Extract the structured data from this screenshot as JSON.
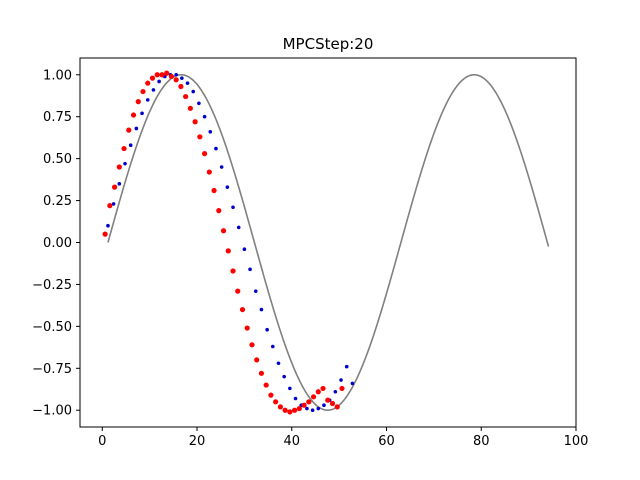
{
  "chart_data": {
    "type": "scatter",
    "title": "MPCStep:20",
    "xlabel": "",
    "ylabel": "",
    "xlim": [
      -4.7,
      100
    ],
    "ylim": [
      -1.1,
      1.1
    ],
    "xticks": [
      0,
      20,
      40,
      60,
      80,
      100
    ],
    "yticks": [
      -1.0,
      -0.75,
      -0.5,
      -0.25,
      0.0,
      0.25,
      0.5,
      0.75,
      1.0
    ],
    "xtick_labels": [
      "0",
      "20",
      "40",
      "60",
      "80",
      "100"
    ],
    "ytick_labels": [
      "−1.00",
      "−0.75",
      "−0.50",
      "−0.25",
      "0.00",
      "0.25",
      "0.50",
      "0.75",
      "1.00"
    ],
    "grid": false,
    "reference_curve": {
      "function": "sin",
      "amplitude": 1.0,
      "x_start": 1.2,
      "x_end": 94.2,
      "x_at_peak": 78.5,
      "color": "#808080"
    },
    "series": [
      {
        "color": "#0000cc",
        "marker": "dot",
        "x": [
          1.2,
          2.4,
          3.6,
          4.8,
          6.0,
          7.2,
          8.4,
          9.6,
          10.8,
          12.0,
          13.2,
          14.4,
          15.6,
          16.8,
          18.0,
          19.2,
          20.4,
          21.6,
          22.8,
          24.0,
          25.2,
          26.4,
          27.6,
          28.8,
          30.0,
          31.2,
          32.4,
          33.6,
          34.8,
          36.0,
          37.2,
          38.4,
          39.6,
          40.8,
          42.0,
          43.2,
          44.4,
          45.6,
          46.8,
          48.0,
          49.2,
          50.4,
          51.6,
          52.8
        ],
        "y": [
          0.1,
          0.23,
          0.35,
          0.47,
          0.58,
          0.68,
          0.77,
          0.85,
          0.91,
          0.96,
          0.99,
          1.0,
          1.0,
          0.98,
          0.95,
          0.9,
          0.83,
          0.75,
          0.66,
          0.56,
          0.45,
          0.33,
          0.21,
          0.09,
          -0.04,
          -0.16,
          -0.29,
          -0.4,
          -0.52,
          -0.62,
          -0.72,
          -0.8,
          -0.87,
          -0.93,
          -0.97,
          -0.99,
          -1.0,
          -0.99,
          -0.97,
          -0.94,
          -0.89,
          -0.82,
          -0.74,
          -0.84
        ]
      },
      {
        "color": "#ff0000",
        "marker": "dot",
        "x": [
          0.6,
          1.6,
          2.6,
          3.6,
          4.6,
          5.6,
          6.6,
          7.6,
          8.6,
          9.6,
          10.6,
          11.6,
          12.6,
          13.6,
          14.6,
          15.6,
          16.6,
          17.6,
          18.6,
          19.6,
          20.6,
          21.6,
          22.6,
          23.6,
          24.6,
          25.6,
          26.6,
          27.6,
          28.6,
          29.6,
          30.6,
          31.6,
          32.6,
          33.6,
          34.6,
          35.6,
          36.6,
          37.6,
          38.6,
          39.6,
          40.6,
          41.6,
          42.6,
          43.6,
          44.6,
          45.6,
          46.6,
          47.6,
          48.6,
          49.6,
          50.6
        ],
        "y": [
          0.05,
          0.22,
          0.33,
          0.45,
          0.56,
          0.67,
          0.76,
          0.84,
          0.9,
          0.95,
          0.98,
          1.0,
          1.0,
          1.01,
          0.99,
          0.97,
          0.93,
          0.87,
          0.8,
          0.72,
          0.63,
          0.53,
          0.42,
          0.31,
          0.19,
          0.07,
          -0.05,
          -0.17,
          -0.29,
          -0.4,
          -0.51,
          -0.61,
          -0.7,
          -0.78,
          -0.85,
          -0.91,
          -0.95,
          -0.98,
          -1.0,
          -1.01,
          -1.0,
          -0.99,
          -0.97,
          -0.95,
          -0.92,
          -0.89,
          -0.87,
          -0.94,
          -0.96,
          -0.98,
          -0.87
        ]
      }
    ]
  }
}
